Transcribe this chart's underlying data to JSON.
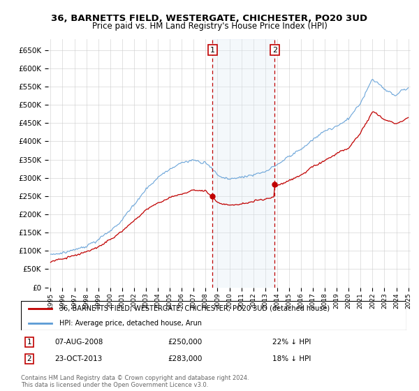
{
  "title": "36, BARNETTS FIELD, WESTERGATE, CHICHESTER, PO20 3UD",
  "subtitle": "Price paid vs. HM Land Registry's House Price Index (HPI)",
  "yticks": [
    0,
    50000,
    100000,
    150000,
    200000,
    250000,
    300000,
    350000,
    400000,
    450000,
    500000,
    550000,
    600000,
    650000
  ],
  "ytick_labels": [
    "£0",
    "£50K",
    "£100K",
    "£150K",
    "£200K",
    "£250K",
    "£300K",
    "£350K",
    "£400K",
    "£450K",
    "£500K",
    "£550K",
    "£600K",
    "£650K"
  ],
  "ylim": [
    0,
    680000
  ],
  "hpi_color": "#5b9bd5",
  "price_color": "#c00000",
  "transaction1_date": 2008.58,
  "transaction1_price": 250000,
  "transaction2_date": 2013.8,
  "transaction2_price": 283000,
  "legend_line1": "36, BARNETTS FIELD, WESTERGATE, CHICHESTER, PO20 3UD (detached house)",
  "legend_line2": "HPI: Average price, detached house, Arun",
  "footnote": "Contains HM Land Registry data © Crown copyright and database right 2024.\nThis data is licensed under the Open Government Licence v3.0.",
  "bg_highlight_color": "#dce9f5",
  "vline_color": "#c00000",
  "grid_color": "#cccccc",
  "background_color": "#ffffff",
  "xmin": 1995,
  "xmax": 2025
}
